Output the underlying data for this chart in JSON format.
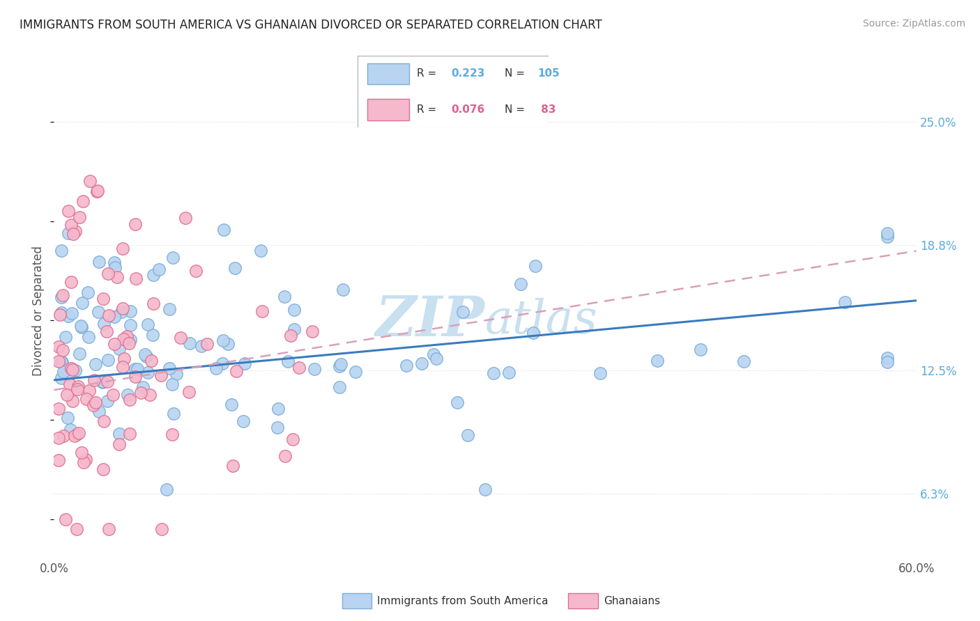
{
  "title": "IMMIGRANTS FROM SOUTH AMERICA VS GHANAIAN DIVORCED OR SEPARATED CORRELATION CHART",
  "source": "Source: ZipAtlas.com",
  "ylabel": "Divorced or Separated",
  "xlim": [
    0.0,
    60.0
  ],
  "ylim": [
    3.0,
    28.0
  ],
  "ytick_positions": [
    6.3,
    12.5,
    18.8,
    25.0
  ],
  "ytick_labels": [
    "6.3%",
    "12.5%",
    "18.8%",
    "25.0%"
  ],
  "xtick_positions": [
    0.0,
    60.0
  ],
  "xtick_labels": [
    "0.0%",
    "60.0%"
  ],
  "color_blue": "#b8d4f0",
  "color_blue_edge": "#7aaedc",
  "color_pink": "#f5b8cc",
  "color_pink_edge": "#e07090",
  "color_blue_text": "#5aabe0",
  "color_pink_text": "#e06090",
  "trendline_blue": "#3a7bbf",
  "trendline_pink": "#d8a0b8",
  "grid_color": "#dddddd",
  "text_color": "#555555",
  "legend_box_color": "#888888",
  "watermark_color": "#c8e0f0",
  "r1": "0.223",
  "n1": "105",
  "r2": "0.076",
  "n2": "83"
}
